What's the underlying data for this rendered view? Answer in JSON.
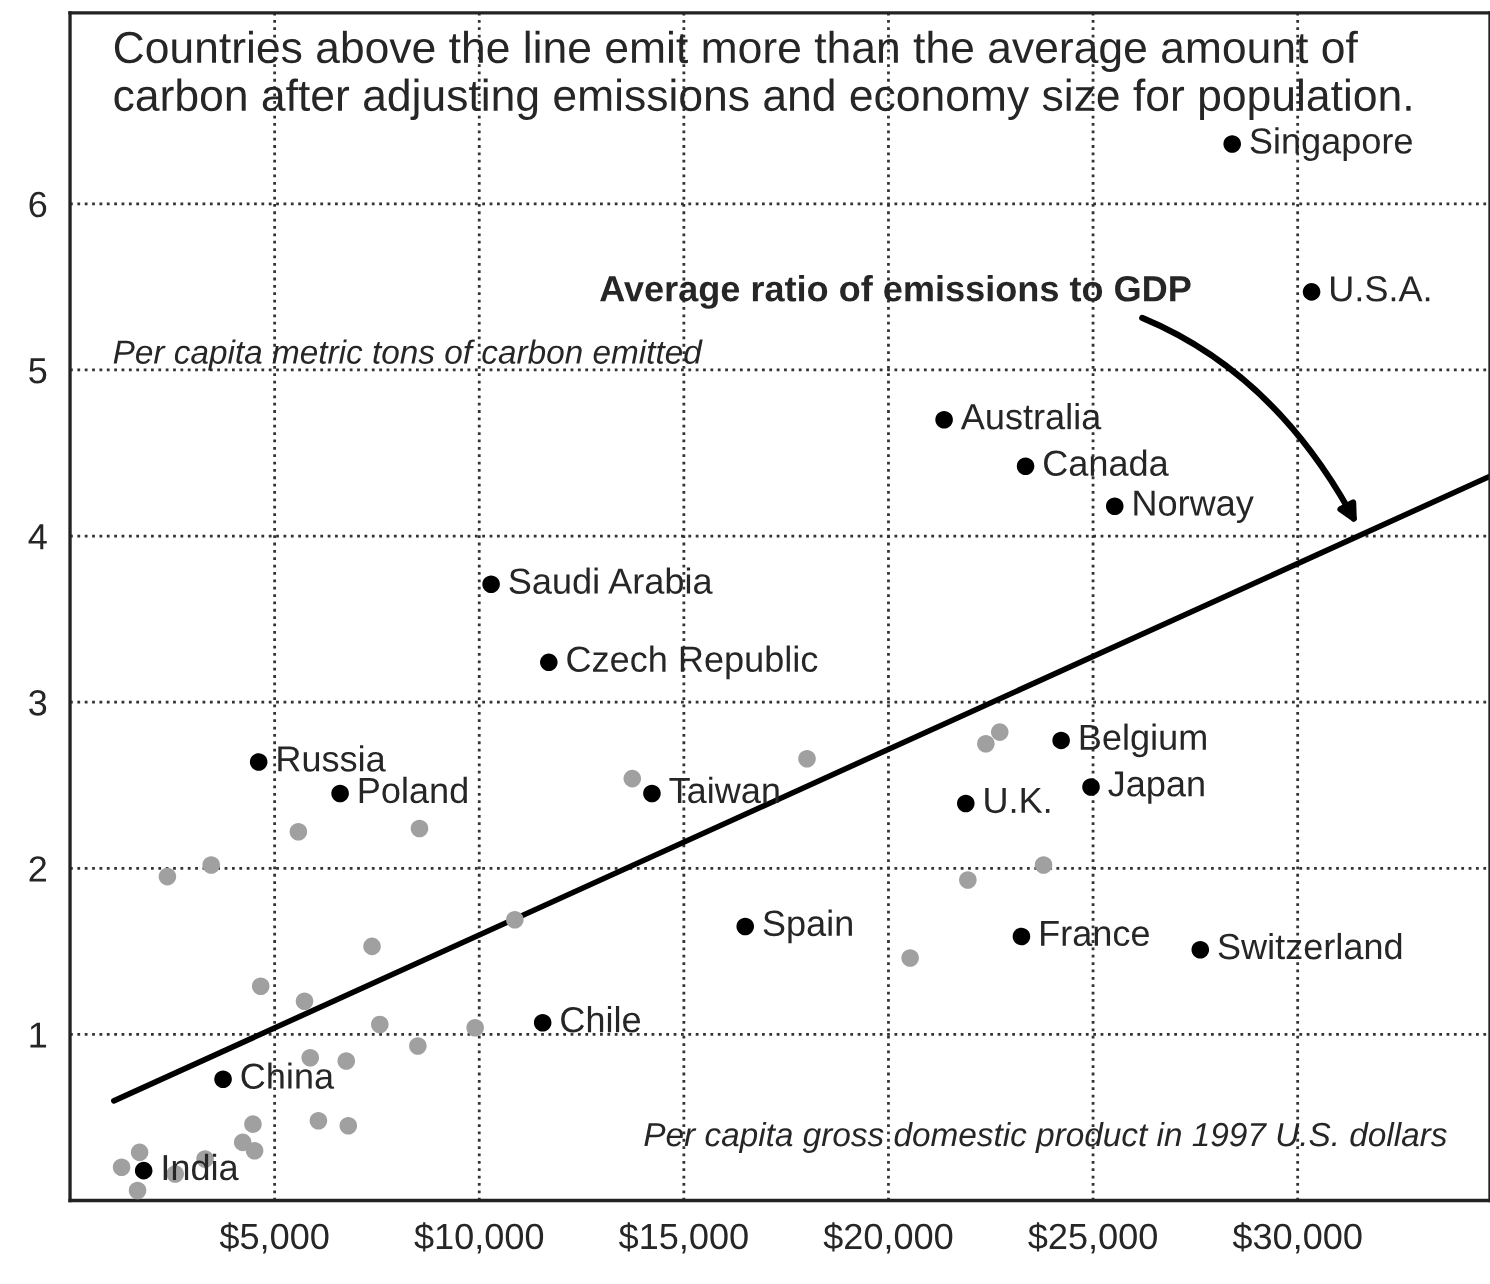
{
  "chart_data": {
    "type": "scatter",
    "xlabel": "Per capita gross domestic product in 1997 U.S. dollars",
    "ylabel": "Per capita metric tons of carbon emitted",
    "xlim": [
      0,
      34700
    ],
    "ylim": [
      0,
      7.15
    ],
    "xticks": [
      {
        "value": 5000,
        "label": "$5,000"
      },
      {
        "value": 10000,
        "label": "$10,000"
      },
      {
        "value": 15000,
        "label": "$15,000"
      },
      {
        "value": 20000,
        "label": "$20,000"
      },
      {
        "value": 25000,
        "label": "$25,000"
      },
      {
        "value": 30000,
        "label": "$30,000"
      }
    ],
    "yticks": [
      1,
      2,
      3,
      4,
      5,
      6
    ],
    "grid": true,
    "marker": "circle",
    "series": [
      {
        "color": "#a0a0a0",
        "x": [
          13740,
          5580,
          8540,
          2380,
          3450,
          10870,
          7380,
          4660,
          5730,
          7570,
          9900,
          8500,
          5870,
          6750,
          6070,
          6800,
          4470,
          4220,
          4510,
          1700,
          3300,
          1260,
          2570,
          1650,
          18010,
          22380,
          22720,
          21940,
          23790,
          20530
        ],
        "values": [
          2.54,
          2.22,
          2.24,
          1.95,
          2.02,
          1.69,
          1.53,
          1.29,
          1.2,
          1.06,
          1.04,
          0.93,
          0.86,
          0.84,
          0.48,
          0.45,
          0.46,
          0.35,
          0.3,
          0.29,
          0.25,
          0.2,
          0.16,
          0.06,
          2.66,
          2.75,
          2.82,
          1.93,
          2.02,
          1.46
        ]
      },
      {
        "color": "#000000",
        "x": [
          28400,
          30340,
          21360,
          23350,
          25530,
          10290,
          11700,
          4610,
          6600,
          14220,
          24220,
          21890,
          24950,
          16500,
          23250,
          27620,
          11550,
          3740,
          1800
        ],
        "values": [
          6.36,
          5.47,
          4.7,
          4.42,
          4.18,
          3.71,
          3.24,
          2.64,
          2.45,
          2.45,
          2.77,
          2.39,
          2.49,
          1.65,
          1.59,
          1.51,
          1.07,
          0.73,
          0.18
        ]
      },
      {
        "type": "line",
        "color": "#000000",
        "marker": "none",
        "x": [
          1070,
          34700
        ],
        "values": [
          0.6,
          4.36
        ]
      }
    ],
    "annotations": [
      "Countries above the line emit more than the average amount of carbon after adjusting emissions and economy size for population.",
      "Average ratio of emissions to GDP",
      {
        "text": "Singapore",
        "x": 28400,
        "y": 6.36
      },
      {
        "text": "U.S.A.",
        "x": 30340,
        "y": 5.47
      },
      {
        "text": "Australia",
        "x": 21360,
        "y": 4.7
      },
      {
        "text": "Canada",
        "x": 23350,
        "y": 4.42
      },
      {
        "text": "Norway",
        "x": 25530,
        "y": 4.18
      },
      {
        "text": "Saudi Arabia",
        "x": 10290,
        "y": 3.71
      },
      {
        "text": "Czech Republic",
        "x": 11700,
        "y": 3.24
      },
      {
        "text": "Russia",
        "x": 4610,
        "y": 2.64
      },
      {
        "text": "Poland",
        "x": 6600,
        "y": 2.45
      },
      {
        "text": "Taiwan",
        "x": 14220,
        "y": 2.45
      },
      {
        "text": "Belgium",
        "x": 24220,
        "y": 2.77
      },
      {
        "text": "U.K.",
        "x": 21890,
        "y": 2.39
      },
      {
        "text": "Japan",
        "x": 24950,
        "y": 2.49
      },
      {
        "text": "Spain",
        "x": 16500,
        "y": 1.65
      },
      {
        "text": "France",
        "x": 23250,
        "y": 1.59
      },
      {
        "text": "Switzerland",
        "x": 27620,
        "y": 1.51
      },
      {
        "text": "Chile",
        "x": 11550,
        "y": 1.07
      },
      {
        "text": "China",
        "x": 3740,
        "y": 0.73
      },
      {
        "text": "India",
        "x": 1800,
        "y": 0.18
      }
    ]
  }
}
